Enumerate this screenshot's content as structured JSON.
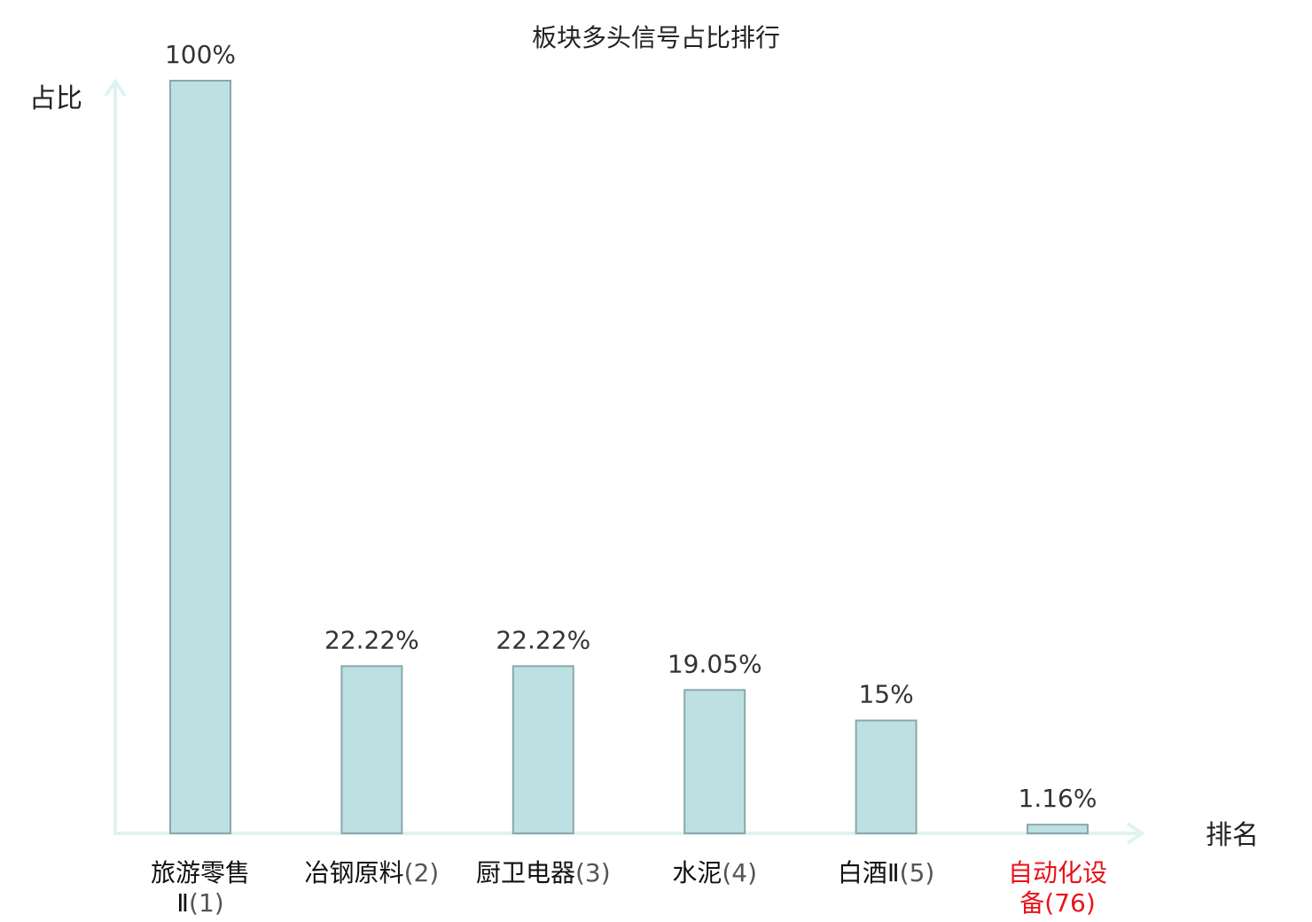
{
  "chart_data": {
    "type": "bar",
    "title": "板块多头信号占比排行",
    "ylabel": "占比",
    "xlabel": "排名",
    "ylim": [
      0,
      100
    ],
    "grid": false,
    "legend": "none",
    "categories": [
      {
        "name": "旅游零售Ⅱ",
        "rank": "(1)",
        "highlight": false
      },
      {
        "name": "冶钢原料",
        "rank": "(2)",
        "highlight": false
      },
      {
        "name": "厨卫电器",
        "rank": "(3)",
        "highlight": false
      },
      {
        "name": "水泥",
        "rank": "(4)",
        "highlight": false
      },
      {
        "name": "白酒Ⅱ",
        "rank": "(5)",
        "highlight": false
      },
      {
        "name": "自动化设备",
        "rank": "(76)",
        "highlight": true
      }
    ],
    "values": [
      100,
      22.22,
      22.22,
      19.05,
      15,
      1.16
    ],
    "value_labels": [
      "100%",
      "22.22%",
      "22.22%",
      "19.05%",
      "15%",
      "1.16%"
    ]
  },
  "colors": {
    "bar_fill": "#bde0e2",
    "bar_stroke": "#8aa8ab",
    "axis": "#dff3f0",
    "highlight_text": "#e8131a"
  }
}
